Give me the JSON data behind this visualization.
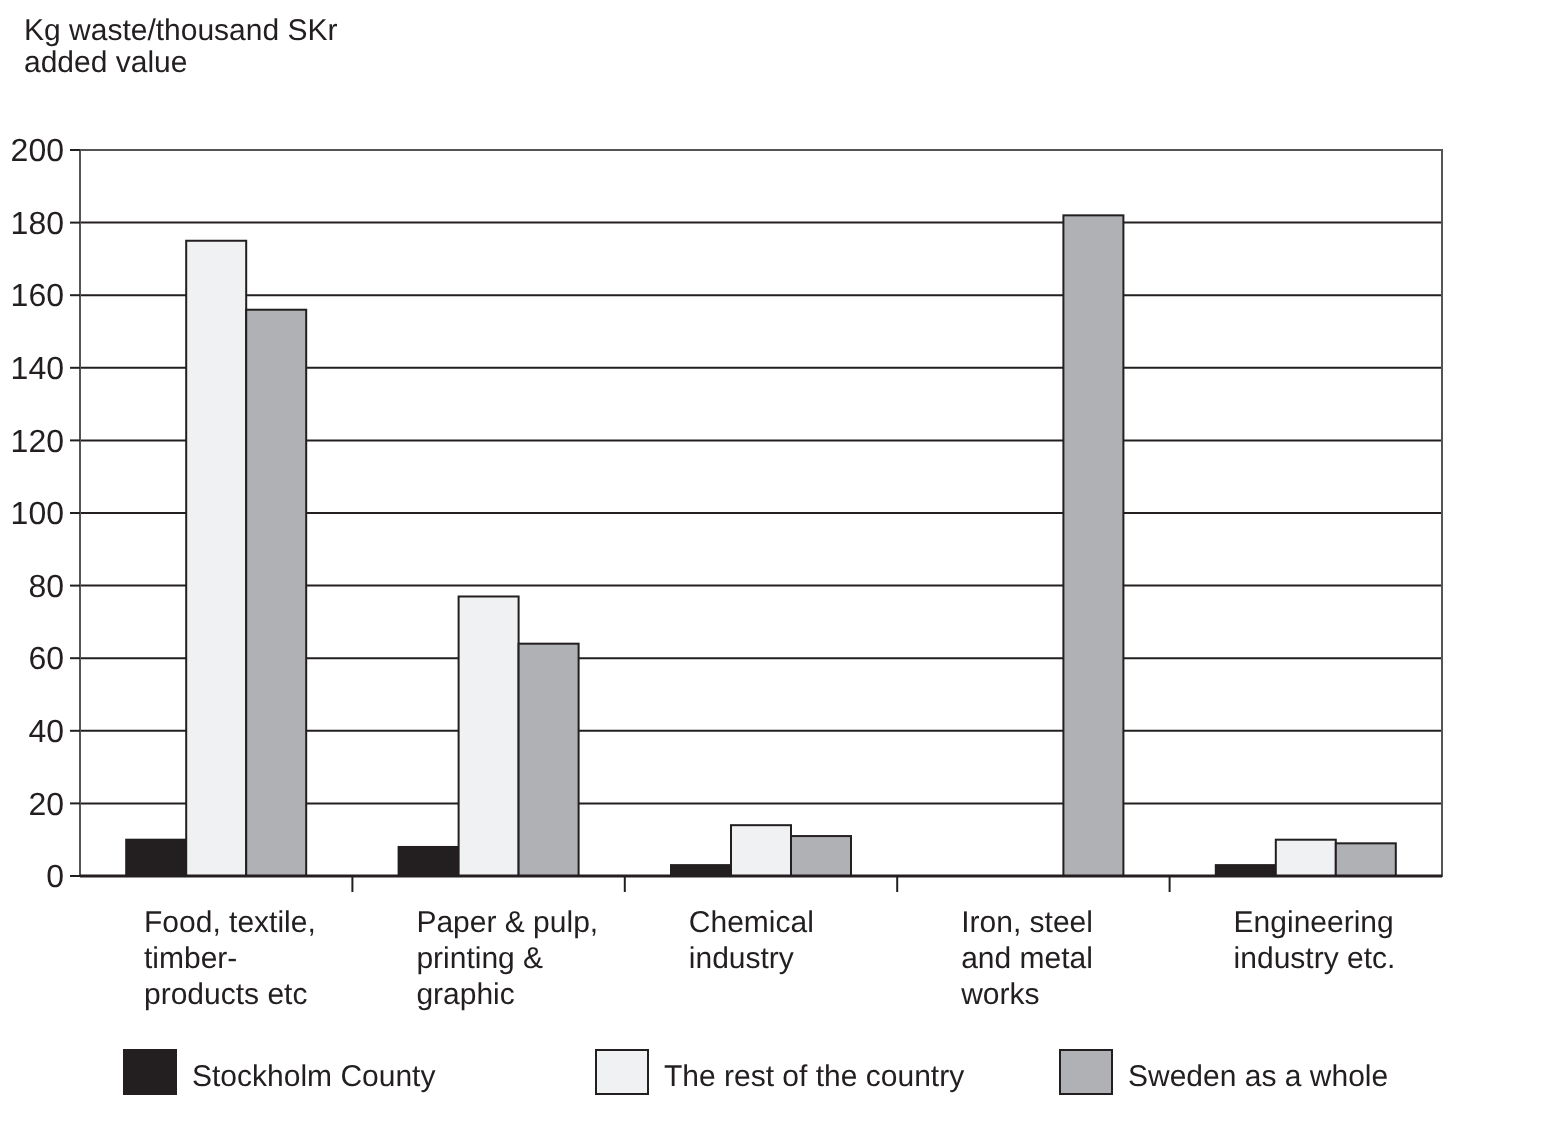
{
  "chart_data": {
    "type": "bar",
    "ylabel": "Kg waste/thousand SKr\nadded value",
    "categories": [
      "Food, textile,\ntimber-\nproducts etc",
      "Paper & pulp,\nprinting &\ngraphic",
      "Chemical\nindustry",
      "Iron, steel\nand metal\nworks",
      "Engineering\nindustry etc."
    ],
    "series": [
      {
        "name": "Stockholm County",
        "color": "#231f20",
        "values": [
          10,
          8,
          3,
          null,
          3
        ]
      },
      {
        "name": "The rest of the country",
        "color": "#f0f1f3",
        "values": [
          175,
          77,
          14,
          null,
          10
        ]
      },
      {
        "name": "Sweden as a whole",
        "color": "#b0b1b5",
        "values": [
          156,
          64,
          11,
          182,
          9
        ]
      }
    ],
    "ylim": [
      0,
      200
    ],
    "yticks": [
      0,
      20,
      40,
      60,
      80,
      100,
      120,
      140,
      160,
      180,
      200
    ],
    "grid": "y",
    "legend": "bottom"
  }
}
